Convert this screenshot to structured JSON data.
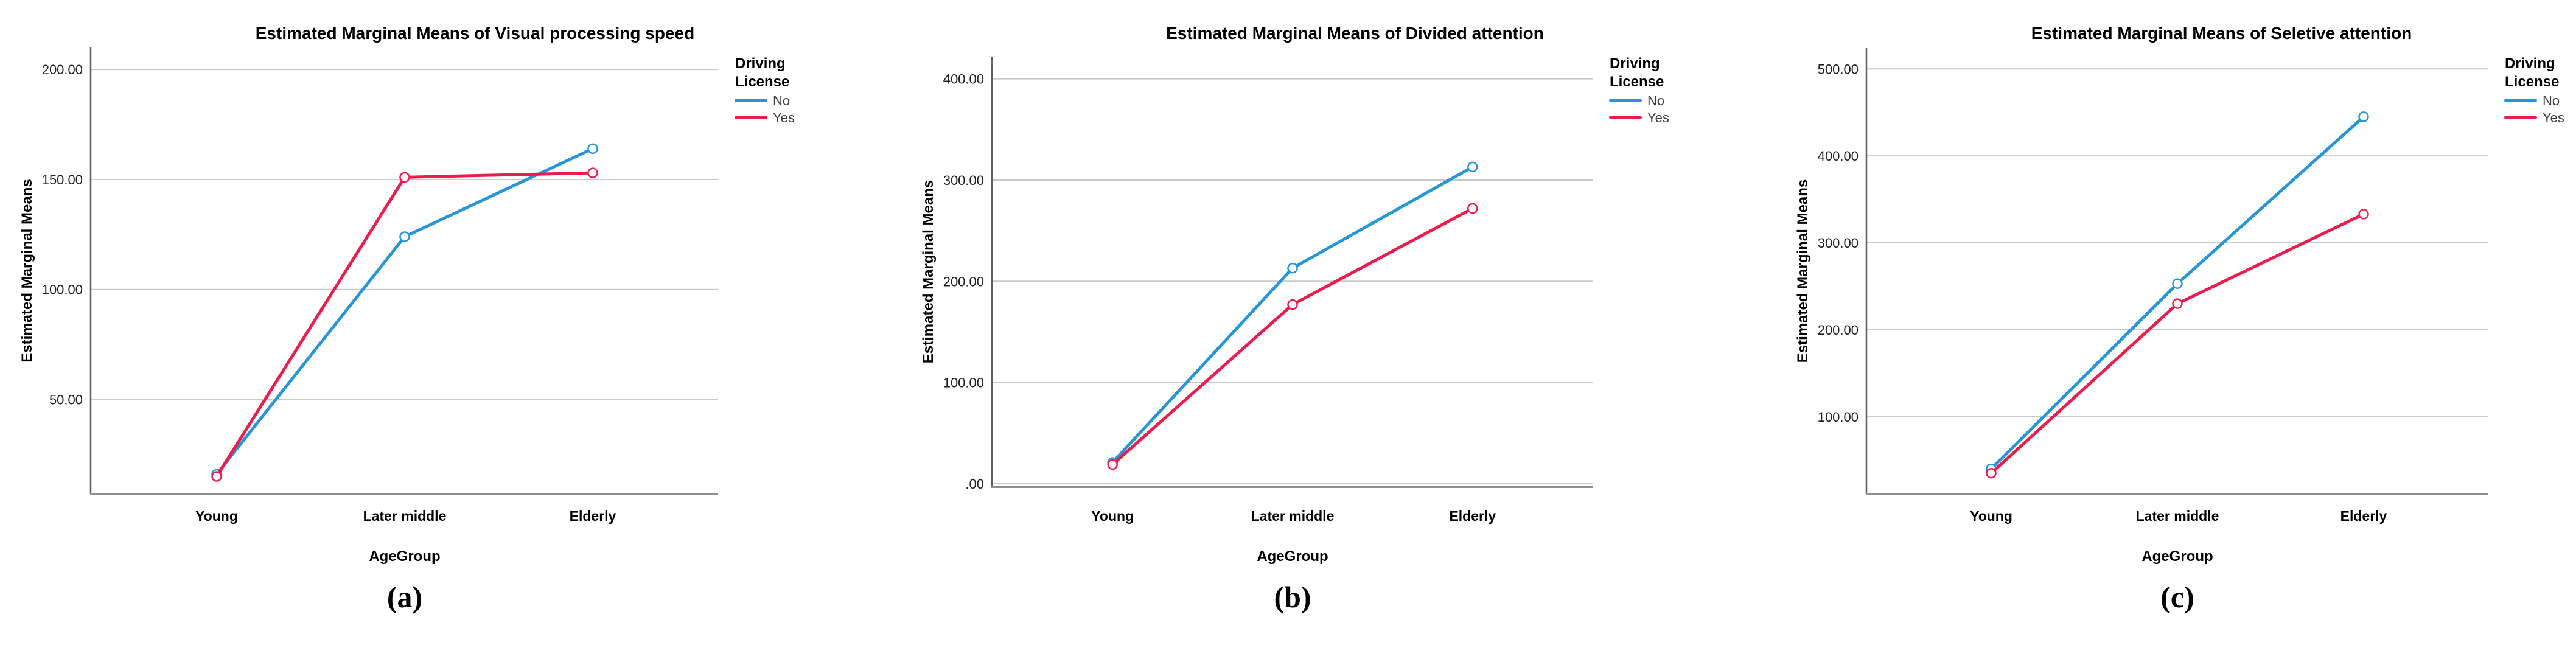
{
  "figure": {
    "background": "#ffffff",
    "axis_color": "#5e5e5e",
    "baseline_color": "#8f8f8f",
    "gridline_color": "#c9c9c9",
    "tick_label_color": "#1f1f1f",
    "legend_text_color": "#3c3c3c",
    "accent_blue": "#2696D8",
    "accent_red": "#EE1C4C"
  },
  "legend": {
    "title_lines": [
      "Driving",
      "License"
    ],
    "items": [
      {
        "label": "No",
        "color": "#2696D8"
      },
      {
        "label": "Yes",
        "color": "#EE1C4C"
      }
    ]
  },
  "chart_data": [
    {
      "type": "line",
      "caption": "(a)",
      "title": "Estimated Marginal Means of Visual processing speed",
      "xlabel": "AgeGroup",
      "ylabel": "Estimated Marginal Means",
      "legend_title": "Driving License",
      "legend_position": "right",
      "grid": "horizontal",
      "categories": [
        "Young",
        "Later middle",
        "Elderly"
      ],
      "series": [
        {
          "name": "No",
          "color": "#2696D8",
          "values": [
            16,
            124,
            164
          ]
        },
        {
          "name": "Yes",
          "color": "#EE1C4C",
          "values": [
            15,
            151,
            153
          ]
        }
      ],
      "yticks": [
        {
          "value": 50,
          "label": "50.00"
        },
        {
          "value": 100,
          "label": "100.00"
        },
        {
          "value": 150,
          "label": "150.00"
        },
        {
          "value": 200,
          "label": "200.00"
        }
      ],
      "ylim": [
        7,
        210
      ]
    },
    {
      "type": "line",
      "caption": "(b)",
      "title": "Estimated Marginal Means of Divided attention",
      "xlabel": "AgeGroup",
      "ylabel": "Estimated Marginal Means",
      "legend_title": "Driving License",
      "legend_position": "right",
      "grid": "horizontal",
      "categories": [
        "Young",
        "Later middle",
        "Elderly"
      ],
      "series": [
        {
          "name": "No",
          "color": "#2696D8",
          "values": [
            21,
            213,
            313
          ]
        },
        {
          "name": "Yes",
          "color": "#EE1C4C",
          "values": [
            19,
            177,
            272
          ]
        }
      ],
      "yticks": [
        {
          "value": 0,
          "label": ".00"
        },
        {
          "value": 100,
          "label": "100.00"
        },
        {
          "value": 200,
          "label": "200.00"
        },
        {
          "value": 300,
          "label": "300.00"
        },
        {
          "value": 400,
          "label": "400.00"
        }
      ],
      "ylim": [
        -3,
        422
      ]
    },
    {
      "type": "line",
      "caption": "(c)",
      "title": "Estimated Marginal Means of Seletive attention",
      "xlabel": "AgeGroup",
      "ylabel": "Estimated Marginal Means",
      "legend_title": "Driving License",
      "legend_position": "right",
      "grid": "horizontal",
      "categories": [
        "Young",
        "Later middle",
        "Elderly"
      ],
      "series": [
        {
          "name": "No",
          "color": "#2696D8",
          "values": [
            40,
            253,
            445
          ]
        },
        {
          "name": "Yes",
          "color": "#EE1C4C",
          "values": [
            35,
            230,
            333
          ]
        }
      ],
      "yticks": [
        {
          "value": 100,
          "label": "100.00"
        },
        {
          "value": 200,
          "label": "200.00"
        },
        {
          "value": 300,
          "label": "300.00"
        },
        {
          "value": 400,
          "label": "400.00"
        },
        {
          "value": 500,
          "label": "500.00"
        }
      ],
      "ylim": [
        11,
        524
      ]
    }
  ]
}
